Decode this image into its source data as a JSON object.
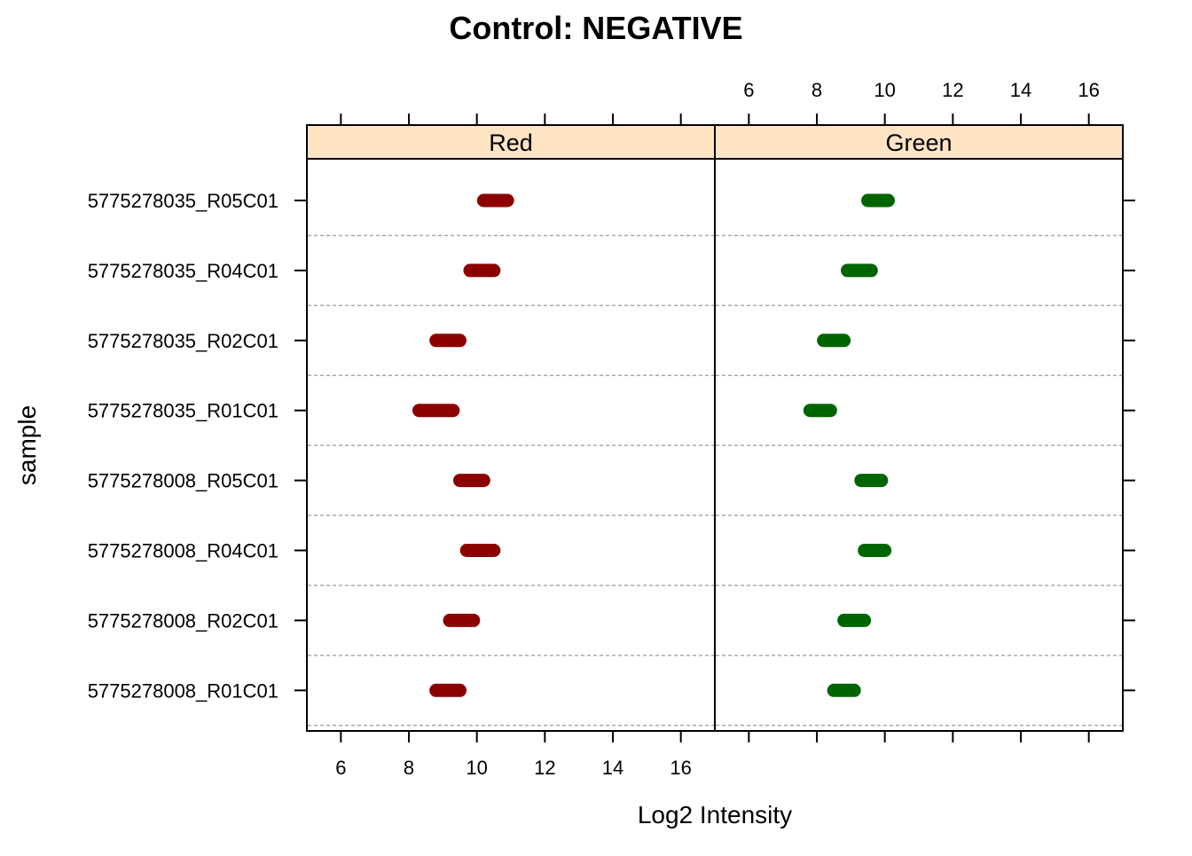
{
  "chart_data": {
    "type": "scatter",
    "title": "Control: NEGATIVE",
    "xlabel": "Log2 Intensity",
    "ylabel": "sample",
    "xlim": [
      5,
      17
    ],
    "x_ticks": [
      6,
      8,
      10,
      12,
      14,
      16
    ],
    "grid": false,
    "panels": [
      {
        "name": "Red",
        "color": "#8b0000"
      },
      {
        "name": "Green",
        "color": "#006400"
      }
    ],
    "strip_color": "#ffe4c4",
    "samples": [
      "5775278035_R05C01",
      "5775278035_R04C01",
      "5775278035_R02C01",
      "5775278035_R01C01",
      "5775278008_R05C01",
      "5775278008_R04C01",
      "5775278008_R02C01",
      "5775278008_R01C01"
    ],
    "series": [
      {
        "name": "Red",
        "ranges": [
          [
            10.2,
            10.9
          ],
          [
            9.8,
            10.5
          ],
          [
            8.8,
            9.5
          ],
          [
            8.3,
            9.3
          ],
          [
            9.5,
            10.2
          ],
          [
            9.7,
            10.5
          ],
          [
            9.2,
            9.9
          ],
          [
            8.8,
            9.5
          ]
        ]
      },
      {
        "name": "Green",
        "ranges": [
          [
            9.5,
            10.1
          ],
          [
            8.9,
            9.6
          ],
          [
            8.2,
            8.8
          ],
          [
            7.8,
            8.4
          ],
          [
            9.3,
            9.9
          ],
          [
            9.4,
            10.0
          ],
          [
            8.8,
            9.4
          ],
          [
            8.5,
            9.1
          ]
        ]
      }
    ]
  }
}
